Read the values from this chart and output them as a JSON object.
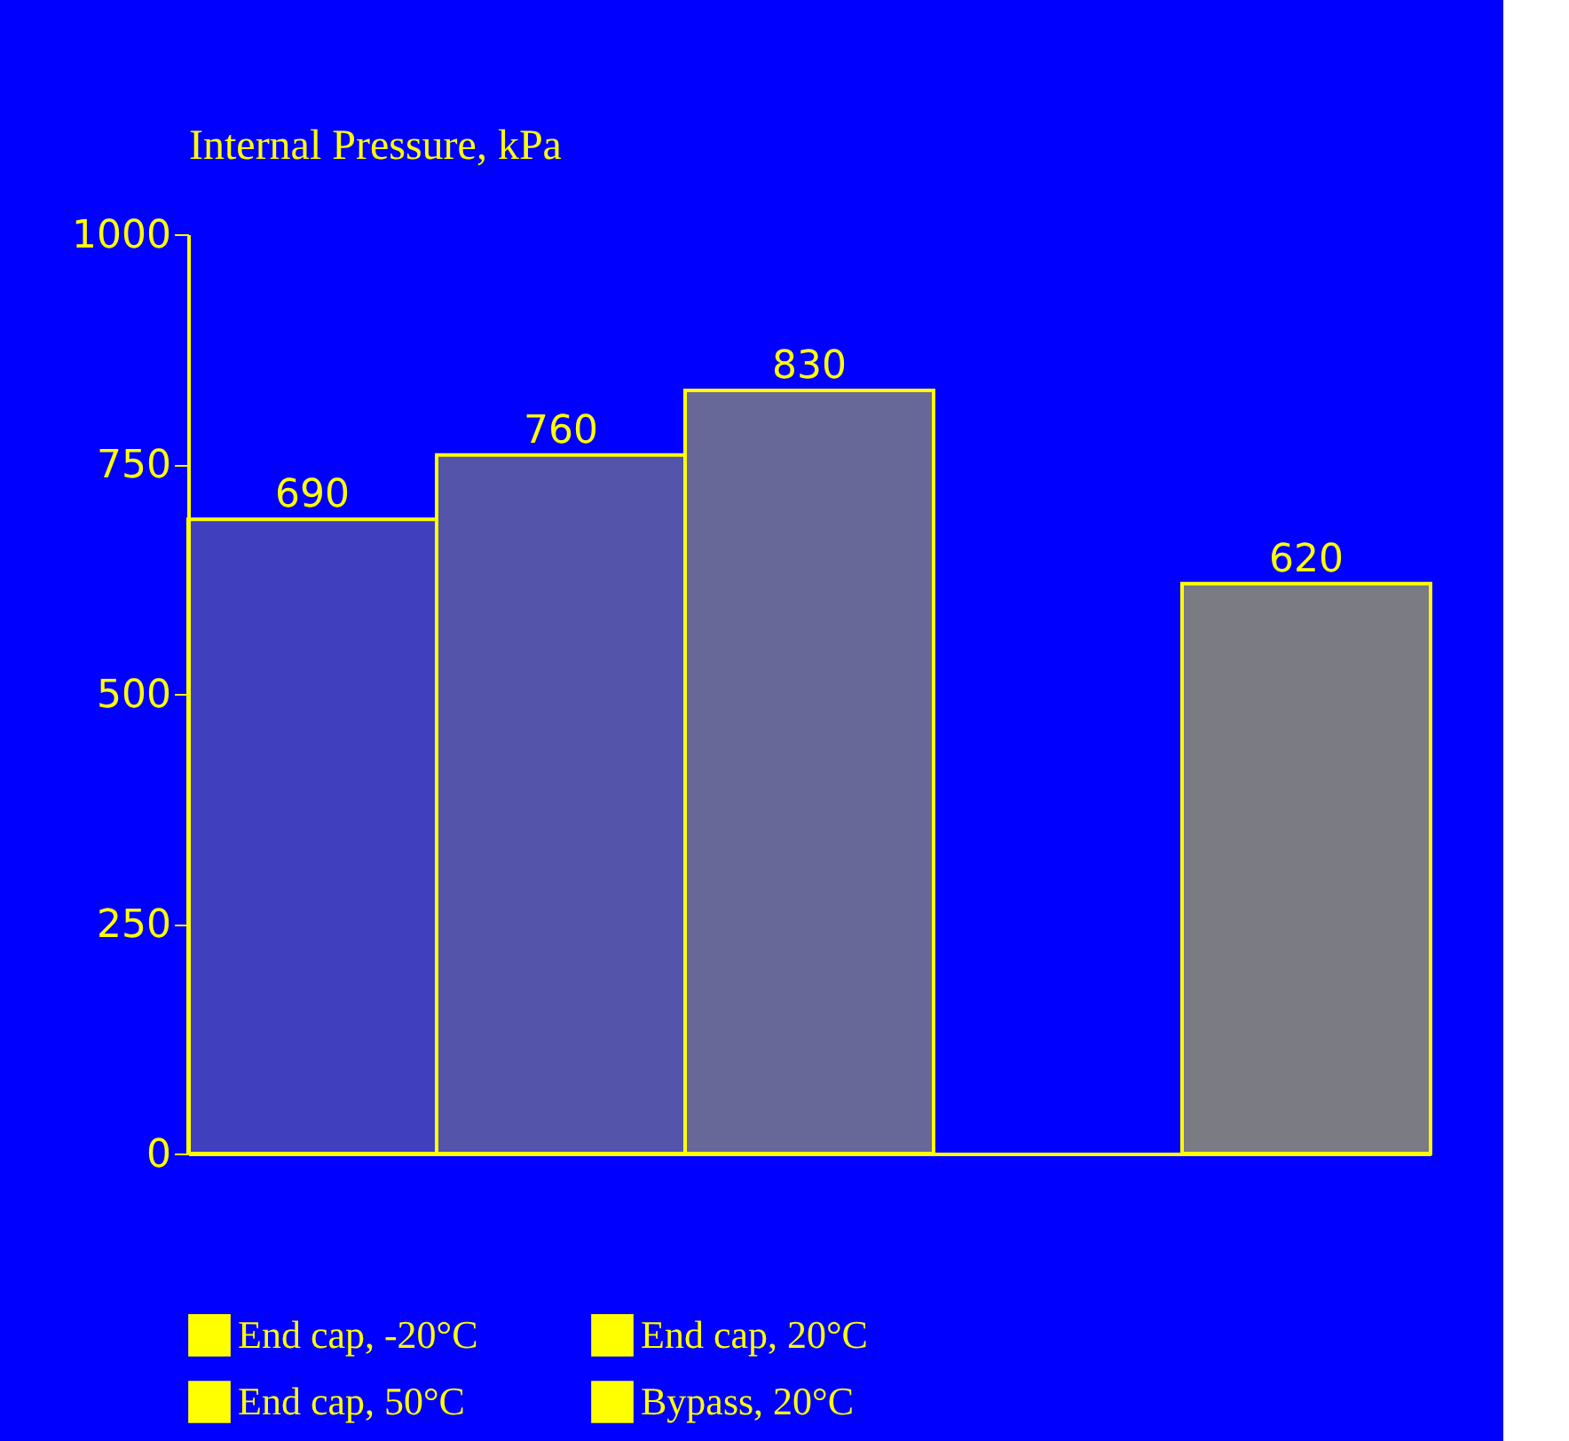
{
  "chart_data": {
    "type": "bar",
    "ylabel": "Internal Pressure, kPa",
    "categories": [
      null,
      null,
      null,
      null,
      null
    ],
    "series": [
      {
        "name": "End cap, -20°C",
        "color": "#ffff00",
        "values": [
          690,
          null,
          null,
          null,
          null
        ]
      },
      {
        "name": "End cap, 20°C",
        "color": "#ffff00",
        "values": [
          null,
          760,
          null,
          null,
          null
        ]
      },
      {
        "name": "End cap, 50°C",
        "color": "#ffff00",
        "values": [
          null,
          null,
          830,
          null,
          null
        ]
      },
      {
        "name": "Bypass, 20°C",
        "color": "#ffff00",
        "values": [
          null,
          null,
          null,
          null,
          620
        ]
      }
    ],
    "ylim": [
      0,
      1000
    ],
    "yticks": [
      0,
      250,
      500,
      750,
      1000
    ],
    "data_labels": true,
    "grid": false,
    "legend": "bottom",
    "tick_labels": "y"
  }
}
